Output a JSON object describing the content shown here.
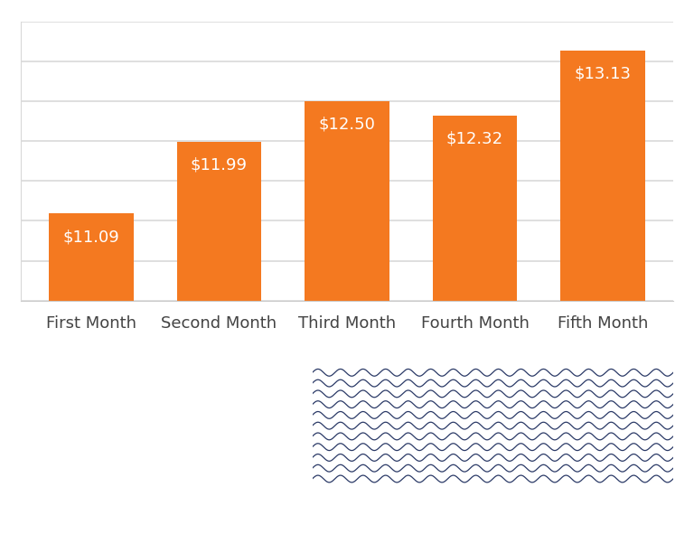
{
  "chart_data": {
    "type": "bar",
    "categories": [
      "First Month",
      "Second Month",
      "Third Month",
      "Fourth Month",
      "Fifth Month"
    ],
    "values": [
      11.09,
      11.99,
      12.5,
      12.32,
      13.13
    ],
    "value_labels": [
      "$11.09",
      "$11.99",
      "$12.50",
      "$12.32",
      "$13.13"
    ],
    "data_labels": true,
    "color": "#f47920",
    "ylim": [
      10,
      13.5
    ],
    "yticks": [
      10,
      10.5,
      11,
      11.5,
      12,
      12.5,
      13,
      13.5
    ],
    "grid": true,
    "tick_labels": "x"
  }
}
